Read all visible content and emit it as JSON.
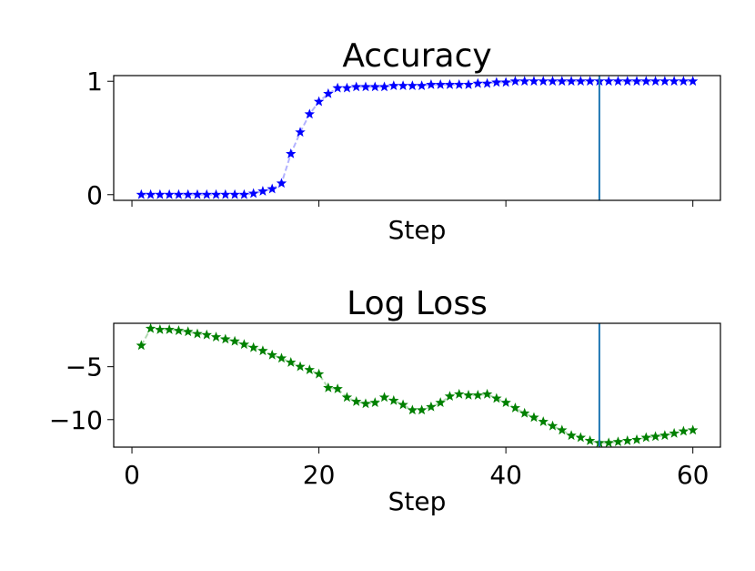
{
  "chart_data": [
    {
      "type": "line",
      "title": "Accuracy",
      "xlabel": "Step",
      "x": [
        1,
        2,
        3,
        4,
        5,
        6,
        7,
        8,
        9,
        10,
        11,
        12,
        13,
        14,
        15,
        16,
        17,
        18,
        19,
        20,
        21,
        22,
        23,
        24,
        25,
        26,
        27,
        28,
        29,
        30,
        31,
        32,
        33,
        34,
        35,
        36,
        37,
        38,
        39,
        40,
        41,
        42,
        43,
        44,
        45,
        46,
        47,
        48,
        49,
        50,
        51,
        52,
        53,
        54,
        55,
        56,
        57,
        58,
        59,
        60
      ],
      "series": [
        {
          "color": "#0000ff",
          "values": [
            0,
            0,
            0,
            0,
            0,
            0,
            0,
            0,
            0,
            0,
            0,
            0,
            0.01,
            0.03,
            0.05,
            0.1,
            0.36,
            0.55,
            0.71,
            0.82,
            0.89,
            0.94,
            0.94,
            0.95,
            0.95,
            0.95,
            0.95,
            0.96,
            0.96,
            0.96,
            0.96,
            0.97,
            0.97,
            0.97,
            0.97,
            0.97,
            0.98,
            0.98,
            0.99,
            0.99,
            1,
            1,
            1,
            1,
            1,
            1,
            1,
            1,
            1,
            1,
            1,
            1,
            1,
            1,
            1,
            1,
            1,
            1,
            1,
            1
          ]
        }
      ],
      "xlim": [
        -1.95,
        62.95
      ],
      "xticks": [
        0,
        20,
        40,
        60
      ],
      "ylim": [
        -0.05,
        1.05
      ],
      "yticks": [
        0,
        1
      ],
      "vline": 50,
      "vline_color": "#1f77b4"
    },
    {
      "type": "line",
      "title": "Log Loss",
      "xlabel": "Step",
      "x": [
        1,
        2,
        3,
        4,
        5,
        6,
        7,
        8,
        9,
        10,
        11,
        12,
        13,
        14,
        15,
        16,
        17,
        18,
        19,
        20,
        21,
        22,
        23,
        24,
        25,
        26,
        27,
        28,
        29,
        30,
        31,
        32,
        33,
        34,
        35,
        36,
        37,
        38,
        39,
        40,
        41,
        42,
        43,
        44,
        45,
        46,
        47,
        48,
        49,
        50,
        51,
        52,
        53,
        54,
        55,
        56,
        57,
        58,
        59,
        60
      ],
      "series": [
        {
          "color": "#008000",
          "values": [
            -3.0,
            -1.4,
            -1.5,
            -1.5,
            -1.6,
            -1.7,
            -1.9,
            -2.0,
            -2.2,
            -2.4,
            -2.6,
            -2.9,
            -3.2,
            -3.5,
            -3.9,
            -4.2,
            -4.6,
            -5.0,
            -5.3,
            -5.7,
            -7.0,
            -7.1,
            -7.9,
            -8.3,
            -8.5,
            -8.4,
            -7.9,
            -8.2,
            -8.6,
            -9.1,
            -9.1,
            -8.8,
            -8.4,
            -7.8,
            -7.6,
            -7.7,
            -7.7,
            -7.6,
            -8.0,
            -8.4,
            -8.9,
            -9.4,
            -9.8,
            -10.2,
            -10.6,
            -11.0,
            -11.5,
            -11.7,
            -12.0,
            -12.2,
            -12.2,
            -12.1,
            -12.0,
            -11.9,
            -11.7,
            -11.6,
            -11.5,
            -11.3,
            -11.1,
            -11.0
          ]
        }
      ],
      "xlim": [
        -1.95,
        62.95
      ],
      "xticks": [
        0,
        20,
        40,
        60
      ],
      "ylim": [
        -12.6,
        -0.9
      ],
      "yticks": [
        {
          "value": -5,
          "label": "−5"
        },
        {
          "value": -10,
          "label": "−10"
        }
      ],
      "vline": 50,
      "vline_color": "#1f77b4"
    }
  ]
}
